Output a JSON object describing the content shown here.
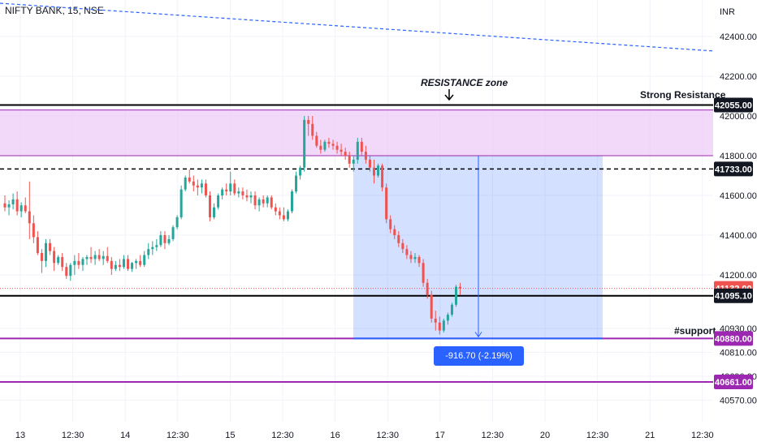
{
  "header": {
    "symbol_title": "NIFTY BANK, 15, NSE"
  },
  "chart_data": {
    "type": "candlestick",
    "title": "NIFTY BANK, 15, NSE",
    "currency_label": "INR",
    "y_ticks": [
      "42400.00",
      "42200.00",
      "42000.00",
      "41800.00",
      "41600.00",
      "41400.00",
      "41200.00",
      "40930.00",
      "40810.00",
      "40690.00",
      "40570.00"
    ],
    "x_ticks": [
      "13",
      "12:30",
      "14",
      "12:30",
      "15",
      "12:30",
      "16",
      "12:30",
      "17",
      "12:30",
      "20",
      "12:30",
      "21",
      "12:30"
    ],
    "price_tags": [
      {
        "label": "42055.00",
        "price": 42055,
        "kind": "dark"
      },
      {
        "label": "41733.00",
        "price": 41733,
        "kind": "dark"
      },
      {
        "label": "41132.00",
        "price": 41132,
        "kind": "red"
      },
      {
        "label": "41095.10",
        "price": 41095.1,
        "kind": "dark"
      },
      {
        "label": "40880.00",
        "price": 40880,
        "kind": "purple"
      },
      {
        "label": "40661.00",
        "price": 40661,
        "kind": "purple"
      }
    ],
    "annotations": {
      "strong_resistance": "Strong Resistance",
      "resistance_zone": "RESISTANCE zone",
      "support": "#support",
      "measure": "-916.70 (-2.19%) -18334"
    },
    "colors": {
      "up": "#26a69a",
      "down": "#ef5350",
      "zone": "#e9c8f7",
      "measure": "#2962ff"
    },
    "candles": [
      [
        41560,
        41600,
        41520,
        41540
      ],
      [
        41540,
        41575,
        41500,
        41555
      ],
      [
        41555,
        41610,
        41530,
        41580
      ],
      [
        41580,
        41620,
        41500,
        41520
      ],
      [
        41520,
        41565,
        41490,
        41550
      ],
      [
        41550,
        41590,
        41510,
        41520
      ],
      [
        41520,
        41670,
        41380,
        41460
      ],
      [
        41460,
        41500,
        41360,
        41390
      ],
      [
        41390,
        41420,
        41300,
        41310
      ],
      [
        41310,
        41330,
        41210,
        41270
      ],
      [
        41270,
        41380,
        41240,
        41360
      ],
      [
        41360,
        41380,
        41300,
        41320
      ],
      [
        41320,
        41340,
        41220,
        41260
      ],
      [
        41260,
        41300,
        41250,
        41290
      ],
      [
        41290,
        41310,
        41220,
        41240
      ],
      [
        41240,
        41260,
        41180,
        41195
      ],
      [
        41195,
        41260,
        41170,
        41250
      ],
      [
        41250,
        41300,
        41200,
        41270
      ],
      [
        41270,
        41310,
        41230,
        41250
      ],
      [
        41250,
        41290,
        41220,
        41280
      ],
      [
        41280,
        41300,
        41250,
        41290
      ],
      [
        41290,
        41340,
        41260,
        41280
      ],
      [
        41280,
        41320,
        41250,
        41300
      ],
      [
        41300,
        41330,
        41270,
        41280
      ],
      [
        41280,
        41320,
        41250,
        41295
      ],
      [
        41295,
        41340,
        41260,
        41270
      ],
      [
        41270,
        41290,
        41200,
        41230
      ],
      [
        41230,
        41270,
        41220,
        41250
      ],
      [
        41250,
        41280,
        41220,
        41240
      ],
      [
        41240,
        41300,
        41230,
        41280
      ],
      [
        41280,
        41300,
        41220,
        41230
      ],
      [
        41230,
        41265,
        41215,
        41260
      ],
      [
        41260,
        41280,
        41230,
        41270
      ],
      [
        41270,
        41300,
        41240,
        41250
      ],
      [
        41250,
        41320,
        41240,
        41300
      ],
      [
        41300,
        41360,
        41280,
        41330
      ],
      [
        41330,
        41370,
        41300,
        41340
      ],
      [
        41340,
        41380,
        41320,
        41350
      ],
      [
        41350,
        41420,
        41340,
        41400
      ],
      [
        41400,
        41420,
        41330,
        41360
      ],
      [
        41360,
        41400,
        41350,
        41380
      ],
      [
        41380,
        41450,
        41370,
        41440
      ],
      [
        41440,
        41500,
        41430,
        41490
      ],
      [
        41490,
        41650,
        41480,
        41630
      ],
      [
        41630,
        41700,
        41620,
        41690
      ],
      [
        41690,
        41730,
        41660,
        41670
      ],
      [
        41670,
        41700,
        41620,
        41650
      ],
      [
        41650,
        41680,
        41600,
        41640
      ],
      [
        41640,
        41680,
        41610,
        41660
      ],
      [
        41660,
        41680,
        41590,
        41600
      ],
      [
        41600,
        41620,
        41470,
        41490
      ],
      [
        41490,
        41560,
        41480,
        41540
      ],
      [
        41540,
        41610,
        41530,
        41600
      ],
      [
        41600,
        41640,
        41580,
        41630
      ],
      [
        41630,
        41660,
        41600,
        41620
      ],
      [
        41620,
        41720,
        41600,
        41660
      ],
      [
        41660,
        41680,
        41600,
        41610
      ],
      [
        41610,
        41640,
        41590,
        41620
      ],
      [
        41620,
        41640,
        41580,
        41600
      ],
      [
        41600,
        41630,
        41570,
        41590
      ],
      [
        41590,
        41620,
        41560,
        41600
      ],
      [
        41600,
        41620,
        41530,
        41550
      ],
      [
        41550,
        41590,
        41520,
        41580
      ],
      [
        41580,
        41600,
        41540,
        41560
      ],
      [
        41560,
        41600,
        41540,
        41590
      ],
      [
        41590,
        41600,
        41530,
        41540
      ],
      [
        41540,
        41560,
        41500,
        41520
      ],
      [
        41520,
        41540,
        41480,
        41500
      ],
      [
        41500,
        41540,
        41470,
        41480
      ],
      [
        41480,
        41530,
        41470,
        41520
      ],
      [
        41520,
        41630,
        41510,
        41620
      ],
      [
        41620,
        41720,
        41610,
        41700
      ],
      [
        41700,
        41750,
        41680,
        41740
      ],
      [
        41740,
        42000,
        41720,
        41980
      ],
      [
        41980,
        42000,
        41900,
        41960
      ],
      [
        41960,
        42000,
        41880,
        41900
      ],
      [
        41900,
        41920,
        41840,
        41850
      ],
      [
        41850,
        41880,
        41810,
        41830
      ],
      [
        41830,
        41880,
        41820,
        41870
      ],
      [
        41870,
        41890,
        41840,
        41860
      ],
      [
        41860,
        41880,
        41830,
        41850
      ],
      [
        41850,
        41870,
        41810,
        41830
      ],
      [
        41830,
        41860,
        41800,
        41820
      ],
      [
        41820,
        41840,
        41780,
        41800
      ],
      [
        41800,
        41820,
        41740,
        41760
      ],
      [
        41760,
        41800,
        41720,
        41780
      ],
      [
        41780,
        41890,
        41760,
        41870
      ],
      [
        41870,
        41890,
        41800,
        41820
      ],
      [
        41820,
        41850,
        41760,
        41780
      ],
      [
        41780,
        41800,
        41720,
        41740
      ],
      [
        41740,
        41780,
        41660,
        41700
      ],
      [
        41700,
        41760,
        41690,
        41750
      ],
      [
        41750,
        41760,
        41620,
        41640
      ],
      [
        41640,
        41660,
        41460,
        41480
      ],
      [
        41480,
        41500,
        41410,
        41430
      ],
      [
        41430,
        41450,
        41380,
        41400
      ],
      [
        41400,
        41420,
        41340,
        41360
      ],
      [
        41360,
        41380,
        41310,
        41330
      ],
      [
        41330,
        41350,
        41280,
        41300
      ],
      [
        41300,
        41320,
        41260,
        41280
      ],
      [
        41280,
        41310,
        41260,
        41290
      ],
      [
        41290,
        41300,
        41240,
        41260
      ],
      [
        41260,
        41280,
        41140,
        41160
      ],
      [
        41160,
        41180,
        41080,
        41100
      ],
      [
        41100,
        41120,
        40960,
        40980
      ],
      [
        40980,
        41020,
        40920,
        40960
      ],
      [
        40960,
        40990,
        40900,
        40920
      ],
      [
        40920,
        40980,
        40910,
        40970
      ],
      [
        40970,
        41010,
        40950,
        41000
      ],
      [
        41000,
        41060,
        40990,
        41050
      ],
      [
        41050,
        41150,
        41040,
        41140
      ],
      [
        41140,
        41160,
        41100,
        41132
      ]
    ]
  }
}
